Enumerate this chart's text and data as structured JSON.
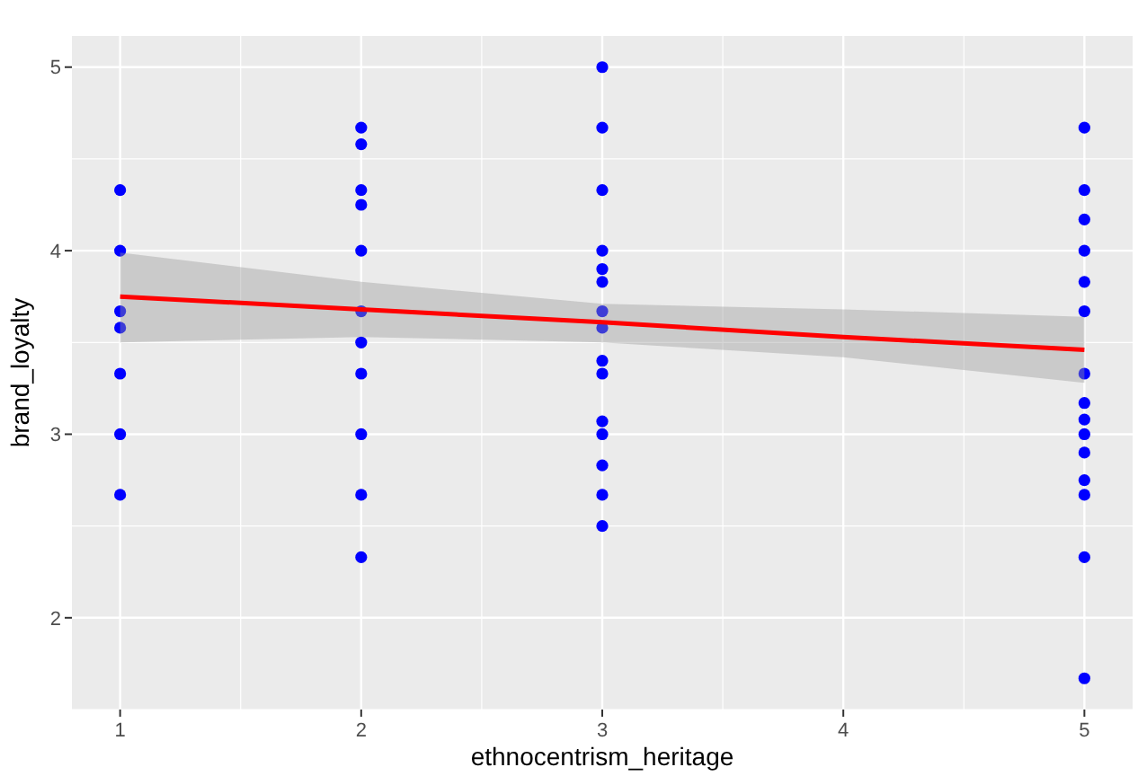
{
  "chart_data": {
    "type": "scatter",
    "xlabel": "ethnocentrism_heritage",
    "ylabel": "brand_loyalty",
    "xlim": [
      0.8,
      5.2
    ],
    "ylim": [
      1.5,
      5.17
    ],
    "xticks": [
      1,
      2,
      3,
      4,
      5
    ],
    "yticks": [
      2,
      3,
      4,
      5
    ],
    "grid": true,
    "series": [
      {
        "color": "#0000ff",
        "marker": "circle",
        "x": [
          1,
          1,
          1,
          1,
          1,
          1,
          1,
          2,
          2,
          2,
          2,
          2,
          2,
          2,
          2,
          2,
          2,
          2,
          3,
          3,
          3,
          3,
          3,
          3,
          3,
          3,
          3,
          3,
          3,
          3,
          3,
          3,
          3,
          5,
          5,
          5,
          5,
          5,
          5,
          5,
          5,
          5,
          5,
          5,
          5,
          5,
          5,
          5
        ],
        "values": [
          4.33,
          4,
          3.67,
          3.58,
          3.33,
          3,
          2.67,
          4.67,
          4.58,
          4.33,
          4.25,
          4,
          3.67,
          3.5,
          3.33,
          3,
          2.67,
          2.33,
          5,
          4.67,
          4.33,
          4,
          3.9,
          3.83,
          3.67,
          3.58,
          3.4,
          3.33,
          3.07,
          3,
          2.83,
          2.67,
          2.5,
          4.67,
          4.33,
          4.17,
          4,
          3.83,
          3.67,
          3.33,
          3.17,
          3.08,
          3,
          2.9,
          2.75,
          2.67,
          2.33,
          1.67
        ]
      },
      {
        "type": "line",
        "color": "#ff0000",
        "x": [
          1,
          2,
          3,
          4,
          5
        ],
        "values": [
          3.75,
          3.68,
          3.61,
          3.53,
          3.46
        ],
        "lower": [
          3.5,
          3.53,
          3.5,
          3.42,
          3.28
        ],
        "upper": [
          3.99,
          3.83,
          3.71,
          3.68,
          3.64
        ]
      }
    ]
  }
}
